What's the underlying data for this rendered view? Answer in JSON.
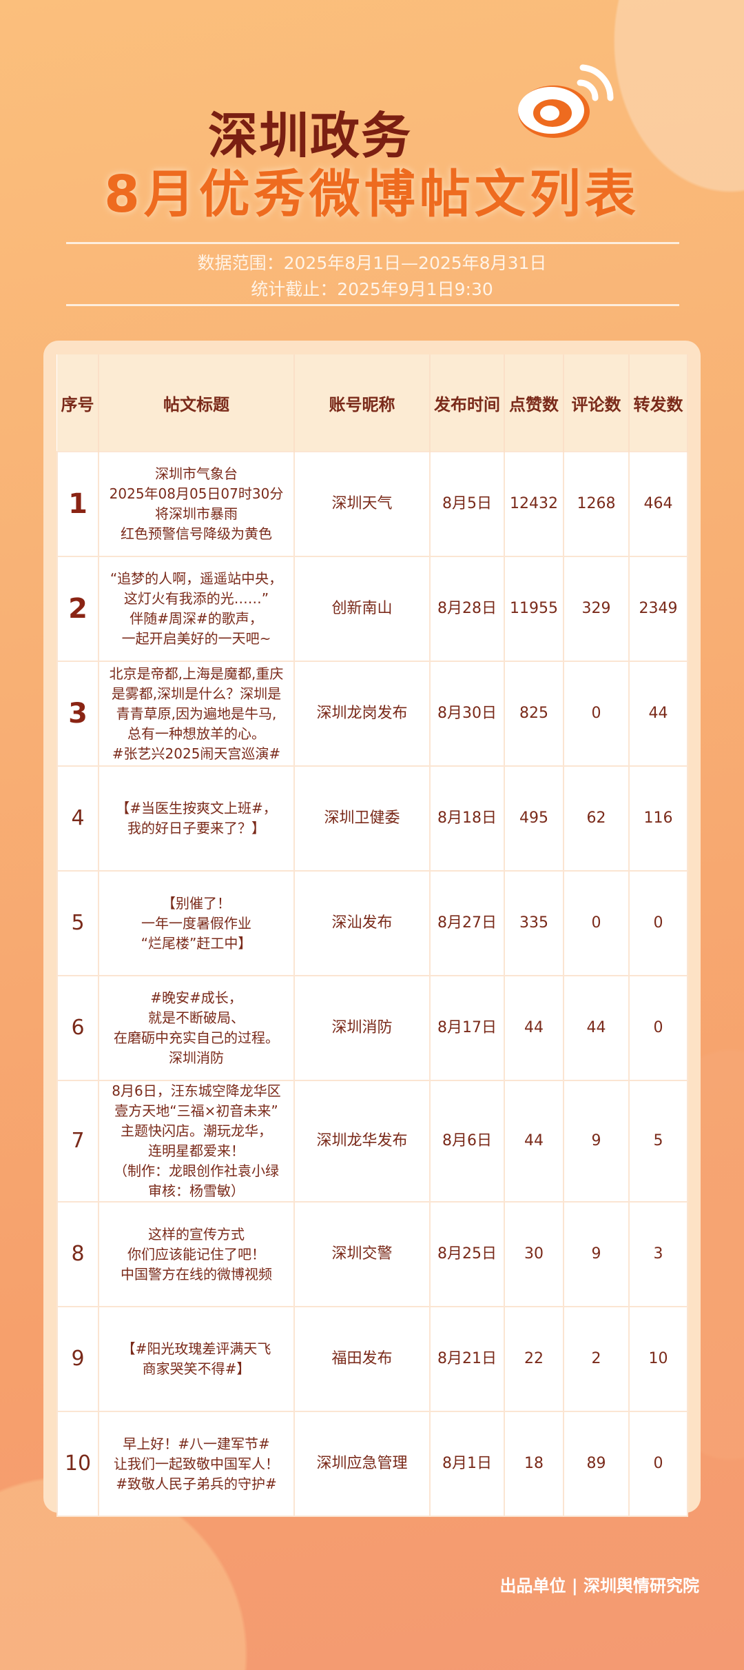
{
  "header": {
    "title_line1": "深圳政务",
    "title_line2": "8月优秀微博帖文列表",
    "data_range": "数据范围：2025年8月1日—2025年8月31日",
    "cutoff": "统计截止：2025年9月1日9:30",
    "logo_icon": "weibo-logo-icon"
  },
  "colors": {
    "title_dark": "#7a1f12",
    "title_orange": "#ee6b1f",
    "text": "#7a2a1a",
    "header_bg": "#fcebd3"
  },
  "table": {
    "columns": [
      "序号",
      "帖文标题",
      "账号昵称",
      "发布时间",
      "点赞数",
      "评论数",
      "转发数"
    ],
    "rows": [
      {
        "rank": "1",
        "title": "深圳市气象台\n2025年08月05日07时30分\n将深圳市暴雨\n红色预警信号降级为黄色",
        "account": "深圳天气",
        "date": "8月5日",
        "likes": "12432",
        "comments": "1268",
        "reposts": "464"
      },
      {
        "rank": "2",
        "title": "“追梦的人啊，遥遥站中央，\n这灯火有我添的光……”\n伴随#周深#的歌声，\n一起开启美好的一天吧~",
        "account": "创新南山",
        "date": "8月28日",
        "likes": "11955",
        "comments": "329",
        "reposts": "2349"
      },
      {
        "rank": "3",
        "title": "北京是帝都,上海是魔都,重庆\n是雾都,深圳是什么？深圳是\n青青草原,因为遍地是牛马,\n总有一种想放羊的心。\n#张艺兴2025闹天宫巡演#",
        "account": "深圳龙岗发布",
        "date": "8月30日",
        "likes": "825",
        "comments": "0",
        "reposts": "44"
      },
      {
        "rank": "4",
        "title": "【#当医生按爽文上班#，\n我的好日子要来了？】",
        "account": "深圳卫健委",
        "date": "8月18日",
        "likes": "495",
        "comments": "62",
        "reposts": "116"
      },
      {
        "rank": "5",
        "title": "【别催了！\n一年一度暑假作业\n“烂尾楼”赶工中】",
        "account": "深汕发布",
        "date": "8月27日",
        "likes": "335",
        "comments": "0",
        "reposts": "0"
      },
      {
        "rank": "6",
        "title": "#晚安#成长，\n就是不断破局、\n在磨砺中充实自己的过程。\n深圳消防",
        "account": "深圳消防",
        "date": "8月17日",
        "likes": "44",
        "comments": "44",
        "reposts": "0"
      },
      {
        "rank": "7",
        "title": "8月6日，汪东城空降龙华区\n壹方天地“三福×初音未来”\n主题快闪店。潮玩龙华，\n连明星都爱来！\n（制作：龙眼创作社袁小绿\n审核：杨雪敏）",
        "account": "深圳龙华发布",
        "date": "8月6日",
        "likes": "44",
        "comments": "9",
        "reposts": "5"
      },
      {
        "rank": "8",
        "title": "这样的宣传方式\n你们应该能记住了吧！\n中国警方在线的微博视频",
        "account": "深圳交警",
        "date": "8月25日",
        "likes": "30",
        "comments": "9",
        "reposts": "3"
      },
      {
        "rank": "9",
        "title": "【#阳光玫瑰差评满天飞\n商家哭笑不得#】",
        "account": "福田发布",
        "date": "8月21日",
        "likes": "22",
        "comments": "2",
        "reposts": "10"
      },
      {
        "rank": "10",
        "title": "早上好！#八一建军节#\n让我们一起致敬中国军人！\n#致敬人民子弟兵的守护#",
        "account": "深圳应急管理",
        "date": "8月1日",
        "likes": "18",
        "comments": "89",
        "reposts": "0"
      }
    ]
  },
  "footer": "出品单位 | 深圳舆情研究院"
}
